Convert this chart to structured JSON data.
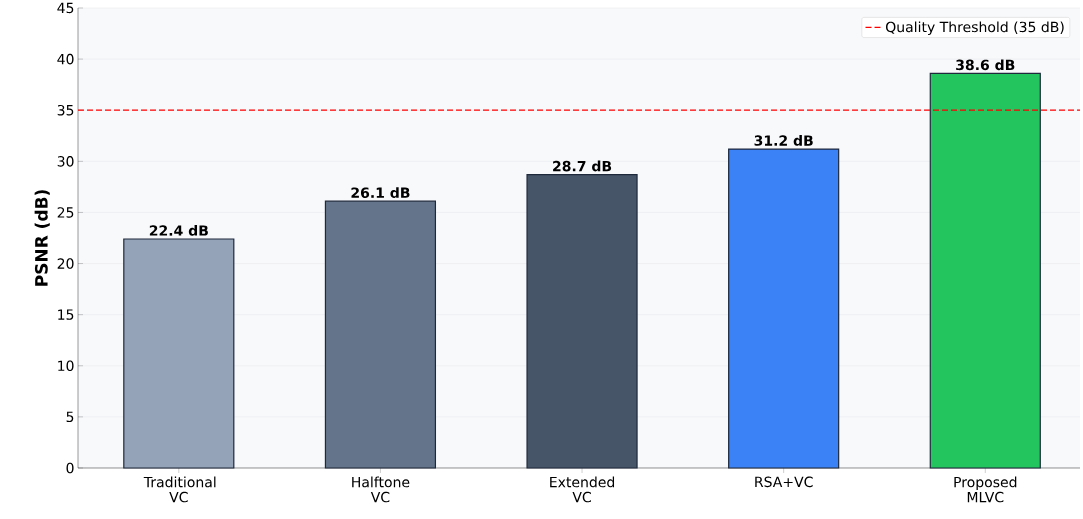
{
  "chart_data": {
    "type": "bar",
    "ylabel": "PSNR (dB)",
    "categories": [
      "Traditional VC",
      "Halftone VC",
      "Extended VC",
      "RSA+VC",
      "Proposed MLVC"
    ],
    "values": [
      22.4,
      26.1,
      28.7,
      31.2,
      38.6
    ],
    "colors": [
      "#94a3b8",
      "#64748b",
      "#475569",
      "#3b82f6",
      "#22c55e"
    ],
    "value_labels": [
      "22.4 dB",
      "26.1 dB",
      "28.7 dB",
      "31.2 dB",
      "38.6 dB"
    ],
    "ylim": [
      0,
      45
    ],
    "yticks": [
      0,
      5,
      10,
      15,
      20,
      25,
      30,
      35,
      40,
      45
    ],
    "ref_lines": [
      {
        "axis": "y",
        "value": 35,
        "label": "Quality Threshold (35 dB)",
        "color": "#ff0000",
        "line_style": "dashed"
      }
    ],
    "grid": "y",
    "legend": "top right"
  }
}
